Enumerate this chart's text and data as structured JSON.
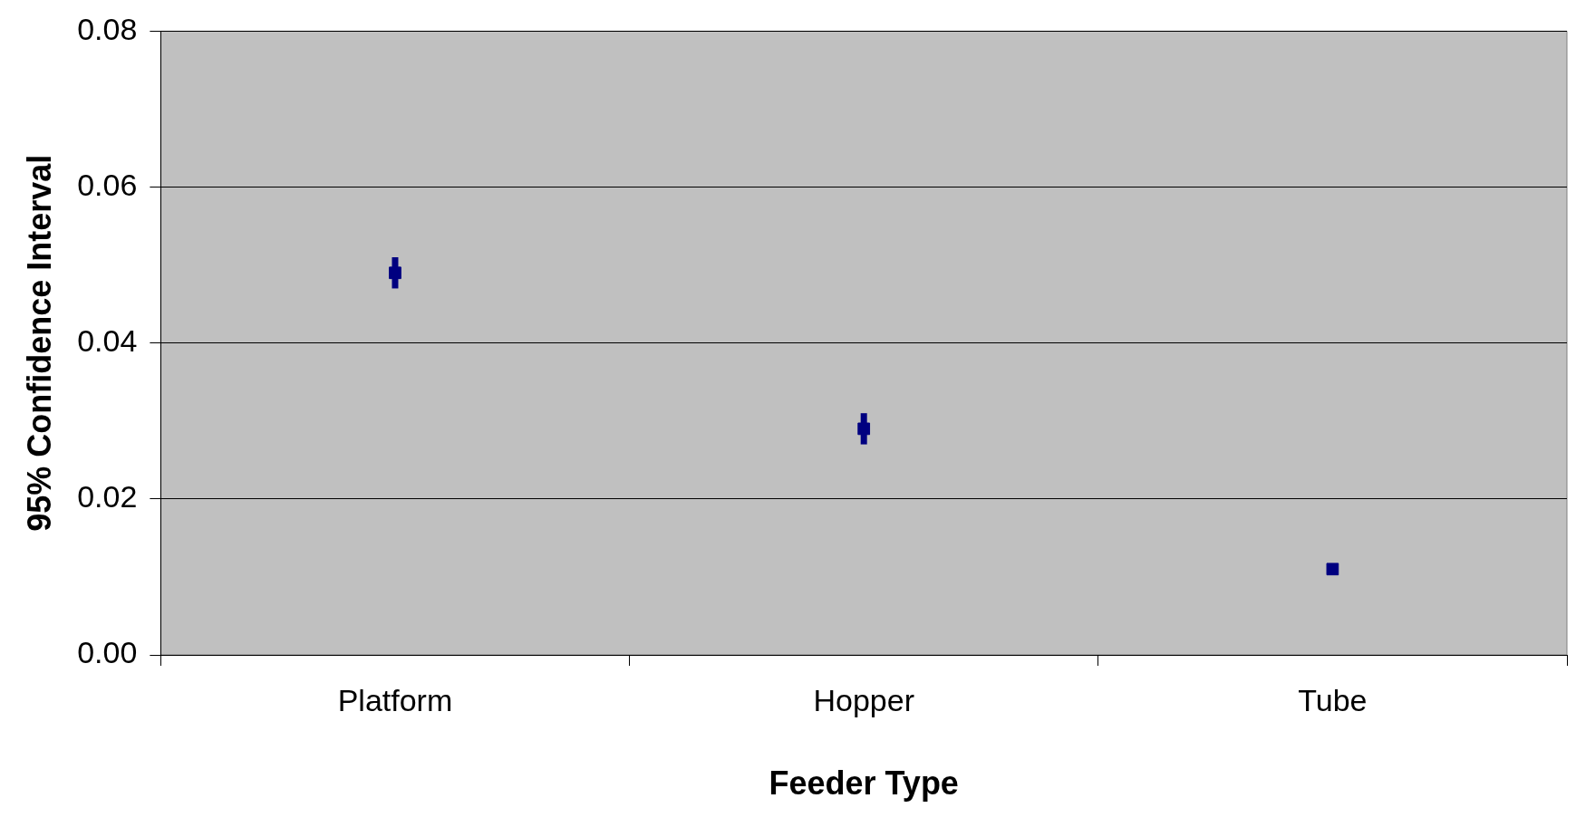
{
  "chart_data": {
    "type": "scatter",
    "xlabel": "Feeder Type",
    "ylabel": "95% Confidence Interval",
    "categories": [
      "Platform",
      "Hopper",
      "Tube"
    ],
    "series": [
      {
        "color": "#000080",
        "values": [
          0.049,
          0.029,
          0.011
        ],
        "errors": [
          0.002,
          0.002,
          null
        ]
      }
    ],
    "ylim": [
      0,
      0.08
    ],
    "yticks": [
      {
        "value": 0,
        "label": "0.00"
      },
      {
        "value": 0.02,
        "label": "0.02"
      },
      {
        "value": 0.04,
        "label": "0.04"
      },
      {
        "value": 0.06,
        "label": "0.06"
      },
      {
        "value": 0.08,
        "label": "0.08"
      }
    ],
    "grid": "y",
    "legend": false,
    "marker": "square"
  }
}
